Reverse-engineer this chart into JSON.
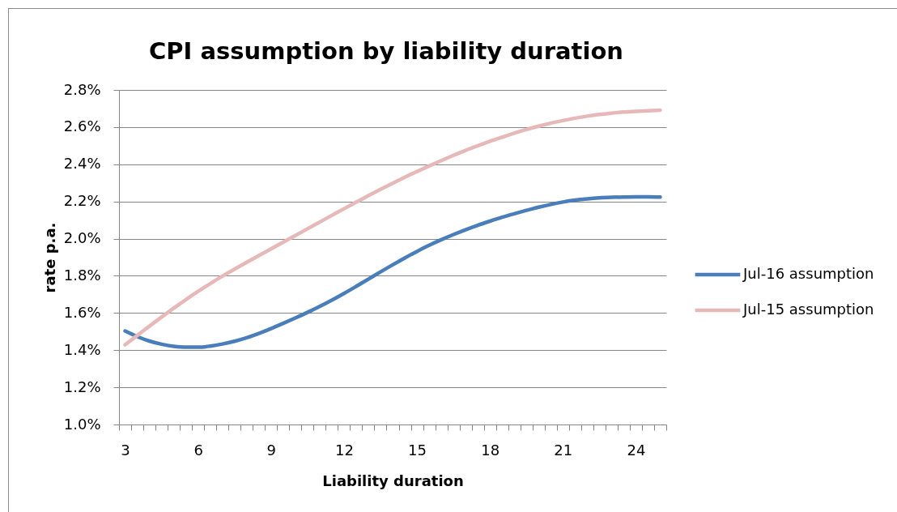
{
  "chart_data": {
    "type": "line",
    "title": "CPI assumption by liability duration",
    "xlabel": "Liability duration",
    "ylabel": "rate p.a.",
    "categories": [
      "3",
      null,
      null,
      null,
      null,
      null,
      "6",
      null,
      null,
      null,
      null,
      null,
      "9",
      null,
      null,
      null,
      null,
      null,
      "12",
      null,
      null,
      null,
      null,
      null,
      "15",
      null,
      null,
      null,
      null,
      null,
      "18",
      null,
      null,
      null,
      null,
      null,
      "21",
      null,
      null,
      null,
      null,
      null,
      "24",
      null,
      null
    ],
    "series": [
      {
        "name": "Jul-16 assumption",
        "color": "#4a7ebb",
        "values": [
          1.503,
          1.473,
          1.449,
          1.432,
          1.421,
          1.416,
          1.416,
          1.422,
          1.433,
          1.448,
          1.467,
          1.49,
          1.516,
          1.544,
          1.573,
          1.603,
          1.635,
          1.669,
          1.705,
          1.743,
          1.782,
          1.821,
          1.859,
          1.896,
          1.931,
          1.964,
          1.994,
          2.022,
          2.048,
          2.072,
          2.094,
          2.115,
          2.134,
          2.152,
          2.169,
          2.184,
          2.197,
          2.207,
          2.214,
          2.219,
          2.222,
          2.224,
          2.225,
          2.225,
          2.224
        ]
      },
      {
        "name": "Jul-15 assumption",
        "color": "#e6b9b8",
        "values": [
          1.429,
          1.479,
          1.529,
          1.578,
          1.626,
          1.672,
          1.716,
          1.758,
          1.798,
          1.836,
          1.873,
          1.909,
          1.945,
          1.981,
          2.017,
          2.053,
          2.089,
          2.125,
          2.161,
          2.196,
          2.231,
          2.265,
          2.298,
          2.33,
          2.361,
          2.391,
          2.42,
          2.448,
          2.475,
          2.5,
          2.524,
          2.546,
          2.567,
          2.587,
          2.605,
          2.621,
          2.635,
          2.648,
          2.659,
          2.668,
          2.675,
          2.681,
          2.685,
          2.688,
          2.691
        ]
      }
    ],
    "ylim": [
      1.0,
      2.8
    ],
    "yticks": [
      {
        "value": 1.0,
        "label": "1.0%"
      },
      {
        "value": 1.2,
        "label": "1.2%"
      },
      {
        "value": 1.4,
        "label": "1.4%"
      },
      {
        "value": 1.6,
        "label": "1.6%"
      },
      {
        "value": 1.8,
        "label": "1.8%"
      },
      {
        "value": 2.0,
        "label": "2.0%"
      },
      {
        "value": 2.2,
        "label": "2.2%"
      },
      {
        "value": 2.4,
        "label": "2.4%"
      },
      {
        "value": 2.6,
        "label": "2.6%"
      },
      {
        "value": 2.8,
        "label": "2.8%"
      }
    ],
    "grid": "y",
    "legend": "right"
  }
}
